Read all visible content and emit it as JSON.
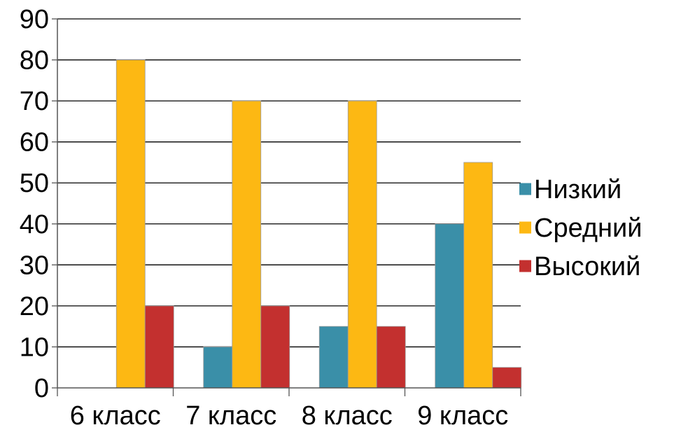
{
  "chart_data": {
    "type": "bar",
    "categories": [
      "6 класс",
      "7 класс",
      "8 класс",
      "9 класс"
    ],
    "series": [
      {
        "name": "Низкий",
        "values": [
          0,
          10,
          15,
          40
        ],
        "color": "#3A8FA8"
      },
      {
        "name": "Средний",
        "values": [
          80,
          70,
          70,
          55
        ],
        "color": "#FDB813"
      },
      {
        "name": "Высокий",
        "values": [
          20,
          20,
          15,
          5
        ],
        "color": "#C3302F"
      }
    ],
    "y_ticks": [
      "0",
      "10",
      "20",
      "30",
      "40",
      "50",
      "60",
      "70",
      "80",
      "90"
    ],
    "ylim": [
      0,
      90
    ],
    "grid": true,
    "legend_position": "right"
  }
}
